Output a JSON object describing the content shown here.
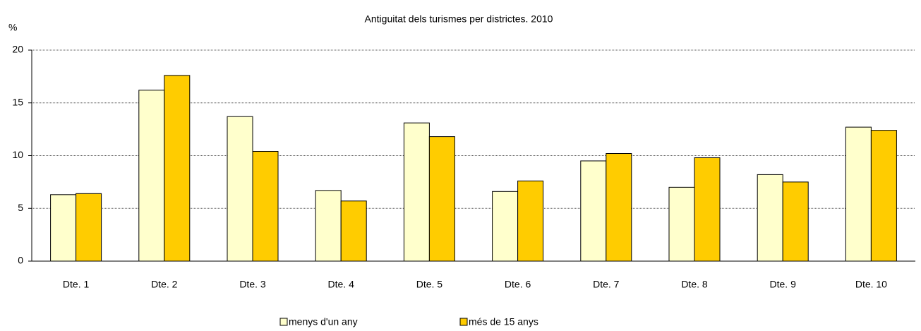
{
  "chart_data": {
    "type": "bar",
    "title": "Antiguitat dels turismes per districtes. 2010",
    "y_label": "%",
    "categories": [
      "Dte. 1",
      "Dte. 2",
      "Dte. 3",
      "Dte. 4",
      "Dte. 5",
      "Dte. 6",
      "Dte. 7",
      "Dte. 8",
      "Dte. 9",
      "Dte. 10"
    ],
    "series": [
      {
        "name": "menys d'un any",
        "color": "#ffffcc",
        "values": [
          6.3,
          16.2,
          13.7,
          6.7,
          13.1,
          6.6,
          9.5,
          7.0,
          8.2,
          12.7
        ]
      },
      {
        "name": "més de 15 anys",
        "color": "#ffcc00",
        "values": [
          6.4,
          17.6,
          10.4,
          5.7,
          11.8,
          7.6,
          10.2,
          9.8,
          7.5,
          12.4
        ]
      }
    ],
    "ylim": [
      0,
      20
    ],
    "yticks": [
      0,
      5,
      10,
      15,
      20
    ],
    "grid": true,
    "legend": "bottom"
  }
}
